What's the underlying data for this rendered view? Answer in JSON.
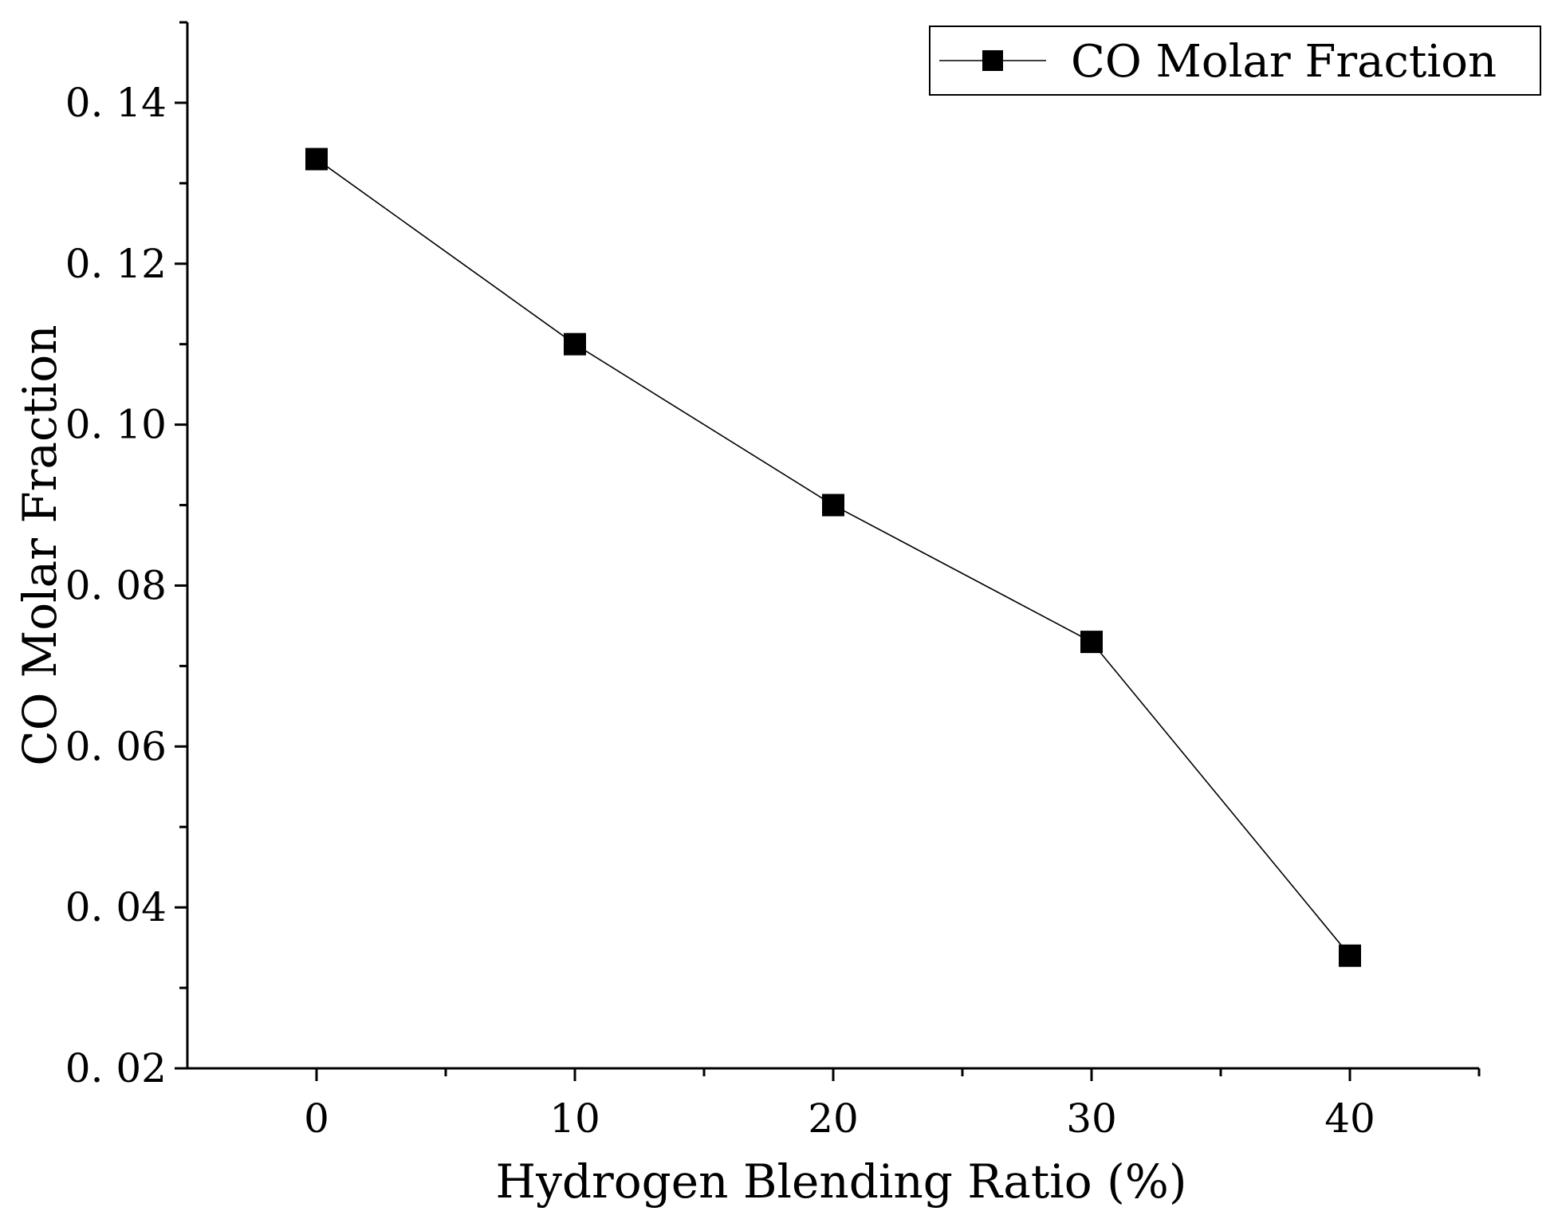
{
  "chart_data": {
    "type": "line",
    "title": "",
    "xlabel": "Hydrogen Blending Ratio (%)",
    "ylabel": "CO Molar Fraction",
    "xlim": [
      -5,
      45
    ],
    "ylim": [
      0.02,
      0.15
    ],
    "x_ticks": [
      0,
      10,
      20,
      30,
      40
    ],
    "x_tick_labels": [
      "0",
      "10",
      "20",
      "30",
      "40"
    ],
    "x_minor_ticks": [
      5,
      15,
      25,
      35,
      45
    ],
    "y_ticks": [
      0.02,
      0.04,
      0.06,
      0.08,
      0.1,
      0.12,
      0.14
    ],
    "y_tick_labels": [
      "0. 02",
      "0. 04",
      "0. 06",
      "0. 08",
      "0. 10",
      "0. 12",
      "0. 14"
    ],
    "y_minor_ticks": [
      0.03,
      0.05,
      0.07,
      0.09,
      0.11,
      0.13,
      0.15
    ],
    "grid": false,
    "legend_position": "top-right",
    "series": [
      {
        "name": "CO Molar Fraction",
        "marker": "square",
        "color": "#000000",
        "x": [
          0,
          10,
          20,
          30,
          40
        ],
        "y": [
          0.133,
          0.11,
          0.09,
          0.073,
          0.034
        ]
      }
    ]
  }
}
